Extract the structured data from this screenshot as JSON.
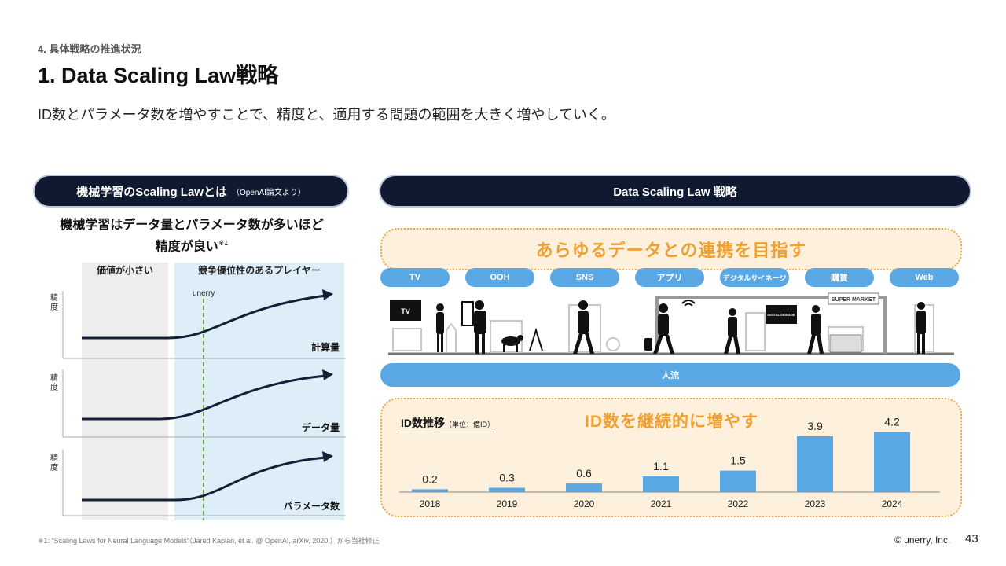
{
  "header": {
    "kicker": "4. 具体戦略の推進状況",
    "title": "1. Data Scaling Law戦略",
    "lead": "ID数とパラメータ数を増やすことで、精度と、適用する問題の範囲を大きく増やしていく。"
  },
  "left_panel": {
    "header_title": "機械学習のScaling Lawとは",
    "header_note": "（OpenAI論文より）",
    "subtitle_line1": "機械学習はデータ量とパラメータ数が多いほど",
    "subtitle_line2": "精度が良い",
    "subtitle_mark": "※1",
    "zone_low_label": "価値が小さい",
    "zone_high_label": "競争優位性のあるプレイヤー",
    "marker_label": "unerry",
    "y_label": "精度",
    "charts": [
      {
        "x_label": "計算量"
      },
      {
        "x_label": "データ量"
      },
      {
        "x_label": "パラメータ数"
      }
    ]
  },
  "right_panel": {
    "header_title": "Data Scaling Law 戦略",
    "banner_text": "あらゆるデータとの連携を目指す",
    "categories": [
      "TV",
      "OOH",
      "SNS",
      "アプリ",
      "デジタルサイネージ",
      "購買",
      "Web"
    ],
    "scene": {
      "tv_sign": "TV",
      "signage_text": "DIGITAL SIGNAGE",
      "market_sign": "SUPER MARKET"
    },
    "flow_label": "人流",
    "id_section": {
      "title": "ID数推移",
      "unit": "（単位：億ID）",
      "headline": "ID数を継続的に増やす"
    }
  },
  "chart_data": {
    "type": "bar",
    "title": "ID数推移",
    "unit": "（単位：億ID）",
    "categories": [
      "2018",
      "2019",
      "2020",
      "2021",
      "2022",
      "2023",
      "2024"
    ],
    "values": [
      0.2,
      0.3,
      0.6,
      1.1,
      1.5,
      3.9,
      4.2
    ],
    "value_labels": [
      "0.2",
      "0.3",
      "0.6",
      "1.1",
      "1.5",
      "3.9",
      "4.2"
    ],
    "ylim": [
      0,
      4.5
    ],
    "bar_color": "#5aa8e3",
    "grid": false,
    "legend": "none"
  },
  "footer": {
    "footnote": "※1: “Scaling Laws for Neural Language Models”（Jared Kaplan, et al. @ OpenAI, arXiv, 2020.）から当社修正",
    "copyright": "© unerry, Inc.",
    "page_number": "43"
  },
  "colors": {
    "navy": "#0f1a30",
    "accent_blue": "#5aa8e3",
    "accent_orange": "#f0a030",
    "banner_bg": "#fdf0dc",
    "zone_grey": "#ededed",
    "zone_blue": "#ddeef9",
    "marker_green": "#6aa83a"
  }
}
